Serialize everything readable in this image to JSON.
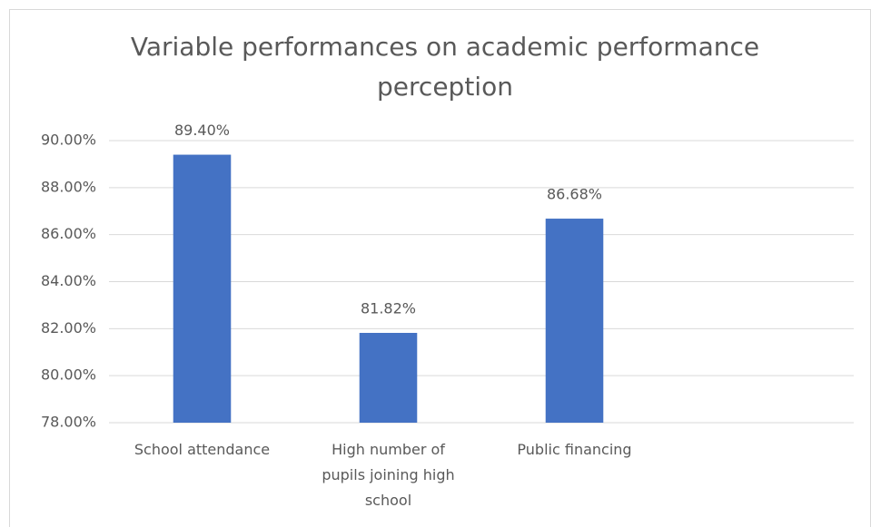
{
  "chart_data": {
    "type": "bar",
    "title": "Variable performances on academic performance perception",
    "categories": [
      "School attendance",
      "High number of pupils joining high school",
      "Public financing",
      null
    ],
    "values": [
      89.4,
      81.82,
      86.68,
      null
    ],
    "value_labels": [
      "89.40%",
      "81.82%",
      "86.68%",
      null
    ],
    "color": "#4472c4",
    "ylim": [
      78,
      90
    ],
    "yticks": [
      {
        "value": 78,
        "label": "78.00%"
      },
      {
        "value": 80,
        "label": "80.00%"
      },
      {
        "value": 82,
        "label": "82.00%"
      },
      {
        "value": 84,
        "label": "84.00%"
      },
      {
        "value": 86,
        "label": "86.00%"
      },
      {
        "value": 88,
        "label": "88.00%"
      },
      {
        "value": 90,
        "label": "90.00%"
      }
    ],
    "grid": true
  }
}
